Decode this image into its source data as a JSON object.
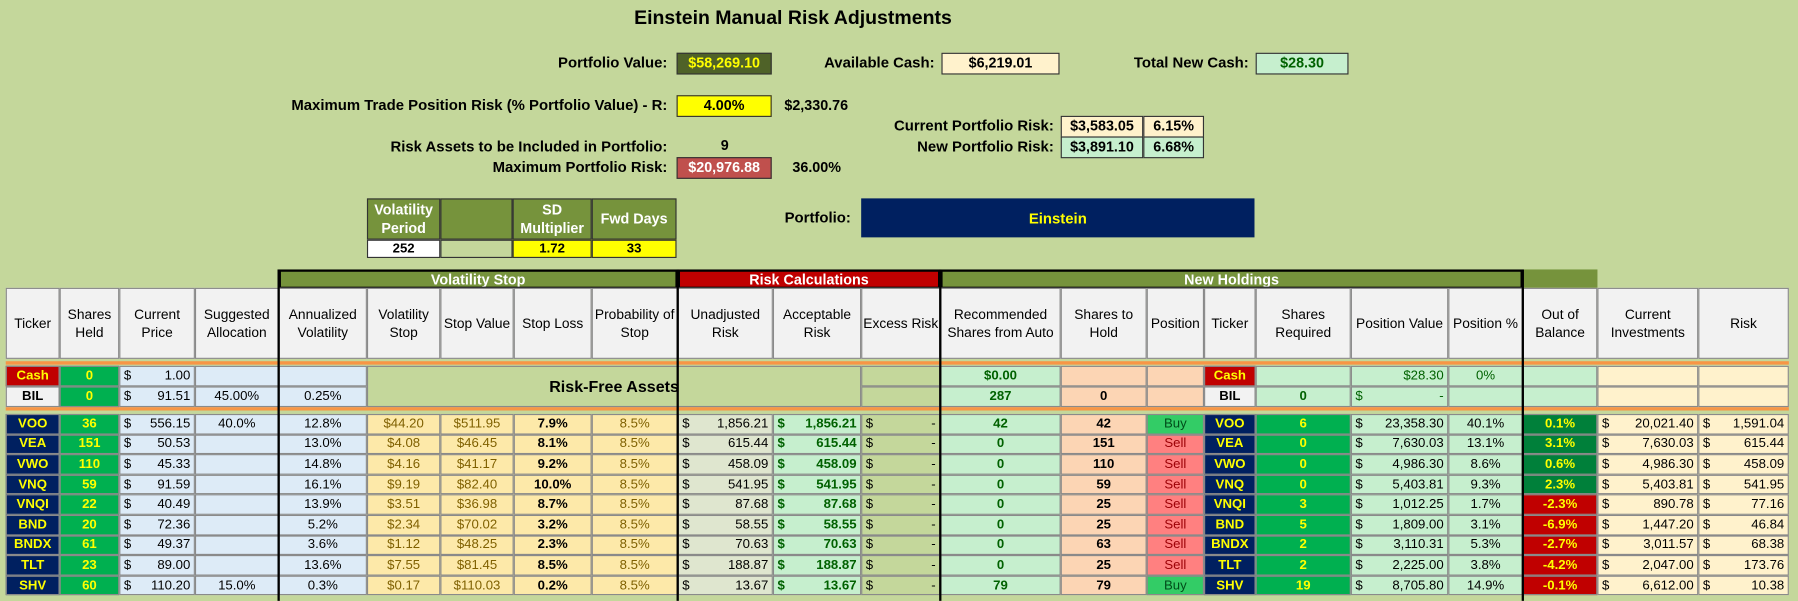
{
  "header": {
    "title": "Einstein Manual Risk Adjustments"
  },
  "summary": {
    "portfolio_value_label": "Portfolio Value:",
    "portfolio_value": "$58,269.10",
    "available_cash_label": "Available Cash:",
    "available_cash": "$6,219.01",
    "total_new_cash_label": "Total New Cash:",
    "total_new_cash": "$28.30",
    "max_trade_risk_label": "Maximum Trade Position Risk (% Portfolio Value) - R:",
    "max_trade_risk_pct": "4.00%",
    "max_trade_risk_amount": "$2,330.76",
    "current_risk_label": "Current Portfolio Risk:",
    "current_risk_amount": "$3,583.05",
    "current_risk_pct": "6.15%",
    "new_risk_label": "New Portfolio Risk:",
    "new_risk_amount": "$3,891.10",
    "new_risk_pct": "6.68%",
    "risk_assets_label": "Risk Assets to be Included in Portfolio:",
    "risk_assets_count": "9",
    "max_portfolio_risk_label": "Maximum Portfolio Risk:",
    "max_portfolio_risk_amount": "$20,976.88",
    "max_portfolio_risk_pct": "36.00%"
  },
  "parameters": {
    "headers": [
      "Volatility Period",
      null,
      "SD Multiplier",
      "Fwd Days"
    ],
    "values": [
      "252",
      null,
      "1.72",
      "33"
    ]
  },
  "portfolio": {
    "label": "Portfolio:",
    "name": "Einstein"
  },
  "table": {
    "groups": [
      "Volatility Stop",
      "Risk Calculations",
      "New Holdings"
    ],
    "columns": [
      "Ticker",
      "Shares Held",
      "Current Price",
      "Suggested Allocation",
      "Annualized Volatility",
      "Volatility Stop",
      "Stop Value",
      "Stop Loss",
      "Probability of Stop",
      "Unadjusted Risk",
      "Acceptable Risk",
      "Excess Risk",
      "Recommended Shares from Auto",
      "Shares to Hold",
      "Position",
      "Ticker",
      "Shares Required",
      "Position Value",
      "Position %",
      "Out of Balance",
      "Current Investments",
      "Risk"
    ],
    "risk_free_label": "Risk-Free Assets",
    "position_colors": {
      "Buy": "#33cc66",
      "Sell": "#ff8080"
    },
    "rows": [
      [
        "Cash",
        "0",
        [
          "$",
          "1.00"
        ],
        null,
        null,
        null,
        null,
        null,
        null,
        null,
        null,
        null,
        "$0.00",
        null,
        null,
        "Cash",
        null,
        "$28.30",
        "0%",
        null,
        null,
        null
      ],
      [
        "BIL",
        "0",
        [
          "$",
          "91.51"
        ],
        "45.00%",
        "0.25%",
        null,
        null,
        null,
        null,
        null,
        null,
        null,
        "287",
        "0",
        null,
        "BIL",
        "0",
        [
          "$",
          "-"
        ],
        null,
        null,
        null,
        null
      ],
      [
        "VOO",
        "36",
        [
          "$",
          "556.15"
        ],
        "40.0%",
        "12.8%",
        "$44.20",
        "$511.95",
        "7.9%",
        "8.5%",
        [
          "$",
          "1,856.21"
        ],
        [
          "$",
          "1,856.21"
        ],
        [
          "$",
          "-"
        ],
        "42",
        "42",
        "Buy",
        "VOO",
        "6",
        [
          "$",
          "23,358.30"
        ],
        "40.1%",
        "0.1%",
        [
          "$",
          "20,021.40"
        ],
        [
          "$",
          "1,591.04"
        ]
      ],
      [
        "VEA",
        "151",
        [
          "$",
          "50.53"
        ],
        null,
        "13.0%",
        "$4.08",
        "$46.45",
        "8.1%",
        "8.5%",
        [
          "$",
          "615.44"
        ],
        [
          "$",
          "615.44"
        ],
        [
          "$",
          "-"
        ],
        "0",
        "151",
        "Sell",
        "VEA",
        "0",
        [
          "$",
          "7,630.03"
        ],
        "13.1%",
        "3.1%",
        [
          "$",
          "7,630.03"
        ],
        [
          "$",
          "615.44"
        ]
      ],
      [
        "VWO",
        "110",
        [
          "$",
          "45.33"
        ],
        null,
        "14.8%",
        "$4.16",
        "$41.17",
        "9.2%",
        "8.5%",
        [
          "$",
          "458.09"
        ],
        [
          "$",
          "458.09"
        ],
        [
          "$",
          "-"
        ],
        "0",
        "110",
        "Sell",
        "VWO",
        "0",
        [
          "$",
          "4,986.30"
        ],
        "8.6%",
        "0.6%",
        [
          "$",
          "4,986.30"
        ],
        [
          "$",
          "458.09"
        ]
      ],
      [
        "VNQ",
        "59",
        [
          "$",
          "91.59"
        ],
        null,
        "16.1%",
        "$9.19",
        "$82.40",
        "10.0%",
        "8.5%",
        [
          "$",
          "541.95"
        ],
        [
          "$",
          "541.95"
        ],
        [
          "$",
          "-"
        ],
        "0",
        "59",
        "Sell",
        "VNQ",
        "0",
        [
          "$",
          "5,403.81"
        ],
        "9.3%",
        "2.3%",
        [
          "$",
          "5,403.81"
        ],
        [
          "$",
          "541.95"
        ]
      ],
      [
        "VNQI",
        "22",
        [
          "$",
          "40.49"
        ],
        null,
        "13.9%",
        "$3.51",
        "$36.98",
        "8.7%",
        "8.5%",
        [
          "$",
          "87.68"
        ],
        [
          "$",
          "87.68"
        ],
        [
          "$",
          "-"
        ],
        "0",
        "25",
        "Sell",
        "VNQI",
        "3",
        [
          "$",
          "1,012.25"
        ],
        "1.7%",
        "-2.3%",
        [
          "$",
          "890.78"
        ],
        [
          "$",
          "77.16"
        ]
      ],
      [
        "BND",
        "20",
        [
          "$",
          "72.36"
        ],
        null,
        "5.2%",
        "$2.34",
        "$70.02",
        "3.2%",
        "8.5%",
        [
          "$",
          "58.55"
        ],
        [
          "$",
          "58.55"
        ],
        [
          "$",
          "-"
        ],
        "0",
        "25",
        "Sell",
        "BND",
        "5",
        [
          "$",
          "1,809.00"
        ],
        "3.1%",
        "-6.9%",
        [
          "$",
          "1,447.20"
        ],
        [
          "$",
          "46.84"
        ]
      ],
      [
        "BNDX",
        "61",
        [
          "$",
          "49.37"
        ],
        null,
        "3.6%",
        "$1.12",
        "$48.25",
        "2.3%",
        "8.5%",
        [
          "$",
          "70.63"
        ],
        [
          "$",
          "70.63"
        ],
        [
          "$",
          "-"
        ],
        "0",
        "63",
        "Sell",
        "BNDX",
        "2",
        [
          "$",
          "3,110.31"
        ],
        "5.3%",
        "-2.7%",
        [
          "$",
          "3,011.57"
        ],
        [
          "$",
          "68.38"
        ]
      ],
      [
        "TLT",
        "23",
        [
          "$",
          "89.00"
        ],
        null,
        "13.6%",
        "$7.55",
        "$81.45",
        "8.5%",
        "8.5%",
        [
          "$",
          "188.87"
        ],
        [
          "$",
          "188.87"
        ],
        [
          "$",
          "-"
        ],
        "0",
        "25",
        "Sell",
        "TLT",
        "2",
        [
          "$",
          "2,225.00"
        ],
        "3.8%",
        "-4.2%",
        [
          "$",
          "2,047.00"
        ],
        [
          "$",
          "173.76"
        ]
      ],
      [
        "SHV",
        "60",
        [
          "$",
          "110.20"
        ],
        "15.0%",
        "0.3%",
        "$0.17",
        "$110.03",
        "0.2%",
        "8.5%",
        [
          "$",
          "13.67"
        ],
        [
          "$",
          "13.67"
        ],
        [
          "$",
          "-"
        ],
        "79",
        "79",
        "Buy",
        "SHV",
        "19",
        [
          "$",
          "8,705.80"
        ],
        "14.9%",
        "-0.1%",
        [
          "$",
          "6,612.00"
        ],
        [
          "$",
          "10.38"
        ]
      ]
    ]
  }
}
